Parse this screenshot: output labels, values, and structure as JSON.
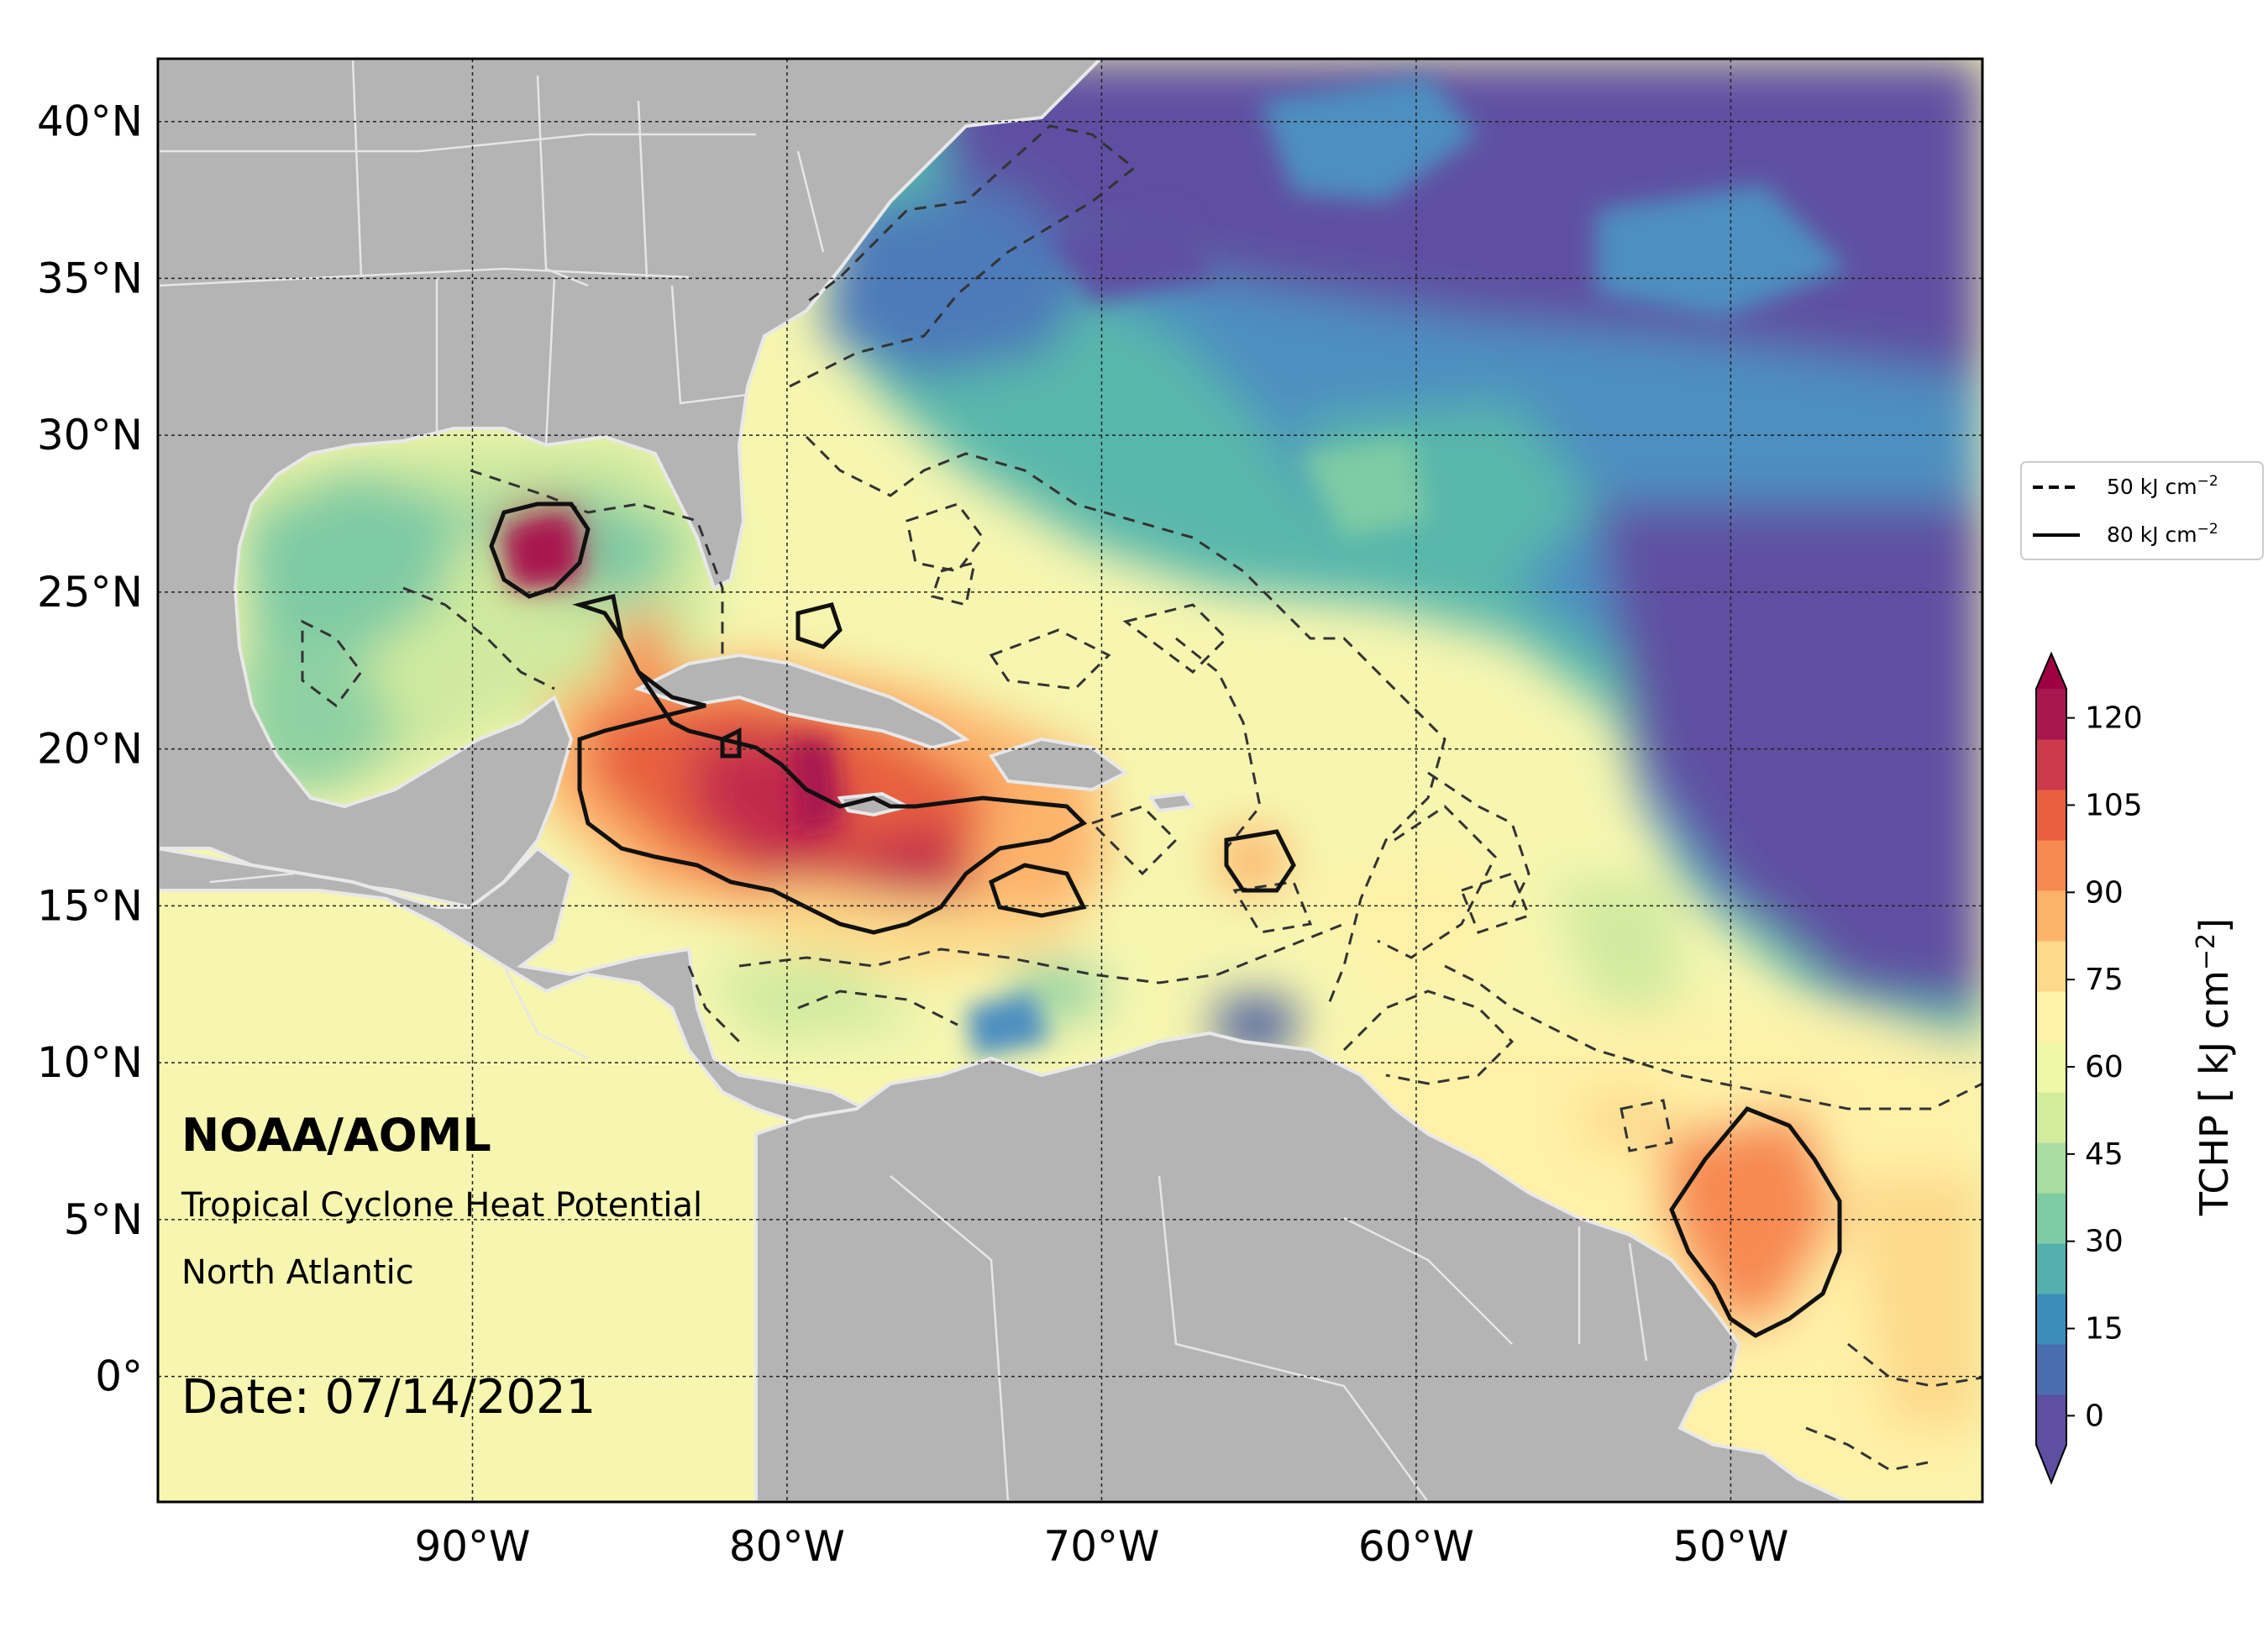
{
  "map": {
    "title": "NOAA/AOML",
    "subtitle": "Tropical Cyclone Heat Potential",
    "region": "North Atlantic",
    "date": "Date: 07/14/2021",
    "lat_labels": [
      "40°N",
      "35°N",
      "30°N",
      "25°N",
      "20°N",
      "15°N",
      "10°N",
      "5°N",
      "0°"
    ],
    "lon_labels": [
      "90°W",
      "80°W",
      "70°W",
      "60°W",
      "50°W"
    ],
    "lat_range": [
      -4,
      42
    ],
    "lon_range": [
      -100,
      -42
    ],
    "land_color": "#b4b4b4",
    "border_color": "#e6e6e6"
  },
  "legend": {
    "items": [
      {
        "label": "50 kJ cm",
        "exponent": "−2",
        "style": "dashed"
      },
      {
        "label": "80 kJ cm",
        "exponent": "−2",
        "style": "solid"
      }
    ]
  },
  "colorbar": {
    "title": "TCHP [ kJ cm",
    "title_exponent": "−2",
    "title_end": "]",
    "ticks": [
      "0",
      "15",
      "30",
      "45",
      "60",
      "75",
      "90",
      "105",
      "120"
    ],
    "colors": [
      "#5e4fa2",
      "#4a6db0",
      "#3d8dba",
      "#55b0ad",
      "#7fcba4",
      "#a9dda2",
      "#d2ec9e",
      "#eef8a6",
      "#fff1a8",
      "#fdd98a",
      "#fdb26a",
      "#f78a51",
      "#e8603f",
      "#cd3a4b",
      "#a8164f"
    ]
  }
}
